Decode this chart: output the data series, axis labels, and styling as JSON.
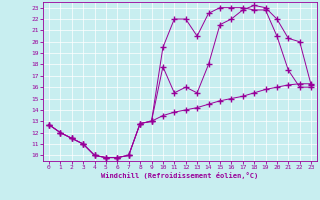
{
  "xlabel": "Windchill (Refroidissement éolien,°C)",
  "background_color": "#c8eef0",
  "line_color": "#990099",
  "xlim": [
    -0.5,
    23.5
  ],
  "ylim": [
    9.5,
    23.5
  ],
  "xticks": [
    0,
    1,
    2,
    3,
    4,
    5,
    6,
    7,
    8,
    9,
    10,
    11,
    12,
    13,
    14,
    15,
    16,
    17,
    18,
    19,
    20,
    21,
    22,
    23
  ],
  "yticks": [
    10,
    11,
    12,
    13,
    14,
    15,
    16,
    17,
    18,
    19,
    20,
    21,
    22,
    23
  ],
  "curve1_x": [
    0,
    1,
    2,
    3,
    4,
    5,
    6,
    7,
    8,
    9,
    10,
    11,
    12,
    13,
    14,
    15,
    16,
    17,
    18,
    19,
    20,
    21,
    22,
    23
  ],
  "curve1_y": [
    12.7,
    12.0,
    11.5,
    11.0,
    10.0,
    9.8,
    9.8,
    10.0,
    12.8,
    13.0,
    19.5,
    22.0,
    22.0,
    20.5,
    22.5,
    23.0,
    23.0,
    23.0,
    22.8,
    22.8,
    20.5,
    17.5,
    16.0,
    16.0
  ],
  "curve2_x": [
    0,
    1,
    2,
    3,
    4,
    5,
    6,
    7,
    8,
    9,
    10,
    11,
    12,
    13,
    14,
    15,
    16,
    17,
    18,
    19,
    20,
    21,
    22,
    23
  ],
  "curve2_y": [
    12.7,
    12.0,
    11.5,
    11.0,
    10.0,
    9.8,
    9.8,
    10.0,
    12.8,
    13.0,
    17.8,
    15.5,
    16.0,
    15.5,
    18.0,
    21.5,
    22.0,
    22.8,
    23.2,
    23.0,
    22.0,
    20.3,
    20.0,
    16.2
  ],
  "curve3_x": [
    0,
    1,
    2,
    3,
    4,
    5,
    6,
    7,
    8,
    9,
    10,
    11,
    12,
    13,
    14,
    15,
    16,
    17,
    18,
    19,
    20,
    21,
    22,
    23
  ],
  "curve3_y": [
    12.7,
    12.0,
    11.5,
    11.0,
    10.0,
    9.8,
    9.8,
    10.0,
    12.8,
    13.0,
    13.5,
    13.8,
    14.0,
    14.2,
    14.5,
    14.8,
    15.0,
    15.2,
    15.5,
    15.8,
    16.0,
    16.2,
    16.3,
    16.3
  ]
}
